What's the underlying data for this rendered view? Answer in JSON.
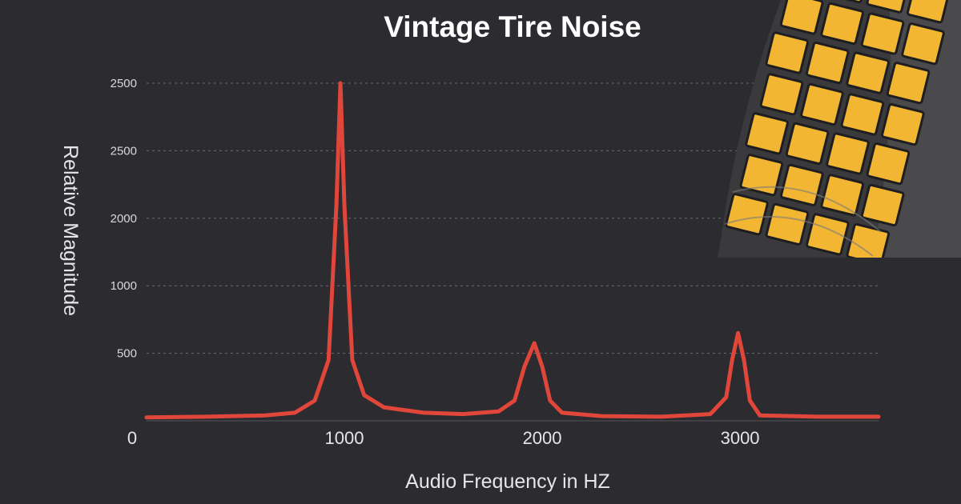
{
  "chart_data": {
    "type": "line",
    "title": "Vintage Tire Noise",
    "xlabel": "Audio Frequency in HZ",
    "ylabel": "Relative Magnitude",
    "xlim": [
      0,
      3700
    ],
    "x_ticks": [
      {
        "value": 0,
        "label": "0"
      },
      {
        "value": 1000,
        "label": "1000"
      },
      {
        "value": 2000,
        "label": "2000"
      },
      {
        "value": 3000,
        "label": "3000"
      }
    ],
    "y_ticks": [
      {
        "level": 1,
        "label": "500"
      },
      {
        "level": 2,
        "label": "1000"
      },
      {
        "level": 3,
        "label": "2000"
      },
      {
        "level": 4,
        "label": "2500"
      },
      {
        "level": 5,
        "label": "2500"
      }
    ],
    "ylim_levels": [
      0,
      5
    ],
    "grid": true,
    "series": [
      {
        "color": "#e0463a",
        "points": [
          [
            0,
            0.05
          ],
          [
            300,
            0.06
          ],
          [
            600,
            0.08
          ],
          [
            750,
            0.12
          ],
          [
            850,
            0.3
          ],
          [
            920,
            0.9
          ],
          [
            960,
            3.2
          ],
          [
            980,
            5.0
          ],
          [
            1000,
            3.2
          ],
          [
            1040,
            0.9
          ],
          [
            1100,
            0.38
          ],
          [
            1200,
            0.2
          ],
          [
            1400,
            0.12
          ],
          [
            1600,
            0.1
          ],
          [
            1780,
            0.14
          ],
          [
            1860,
            0.3
          ],
          [
            1910,
            0.8
          ],
          [
            1960,
            1.15
          ],
          [
            2000,
            0.8
          ],
          [
            2040,
            0.3
          ],
          [
            2100,
            0.12
          ],
          [
            2300,
            0.07
          ],
          [
            2600,
            0.06
          ],
          [
            2850,
            0.1
          ],
          [
            2930,
            0.35
          ],
          [
            2960,
            0.9
          ],
          [
            2990,
            1.3
          ],
          [
            3020,
            0.9
          ],
          [
            3050,
            0.3
          ],
          [
            3100,
            0.08
          ],
          [
            3400,
            0.06
          ],
          [
            3700,
            0.06
          ]
        ]
      }
    ]
  },
  "image": {
    "subject": "tire-tread-photo",
    "tread_color": "#f2b632",
    "rubber_color": "#3a3a3c"
  }
}
